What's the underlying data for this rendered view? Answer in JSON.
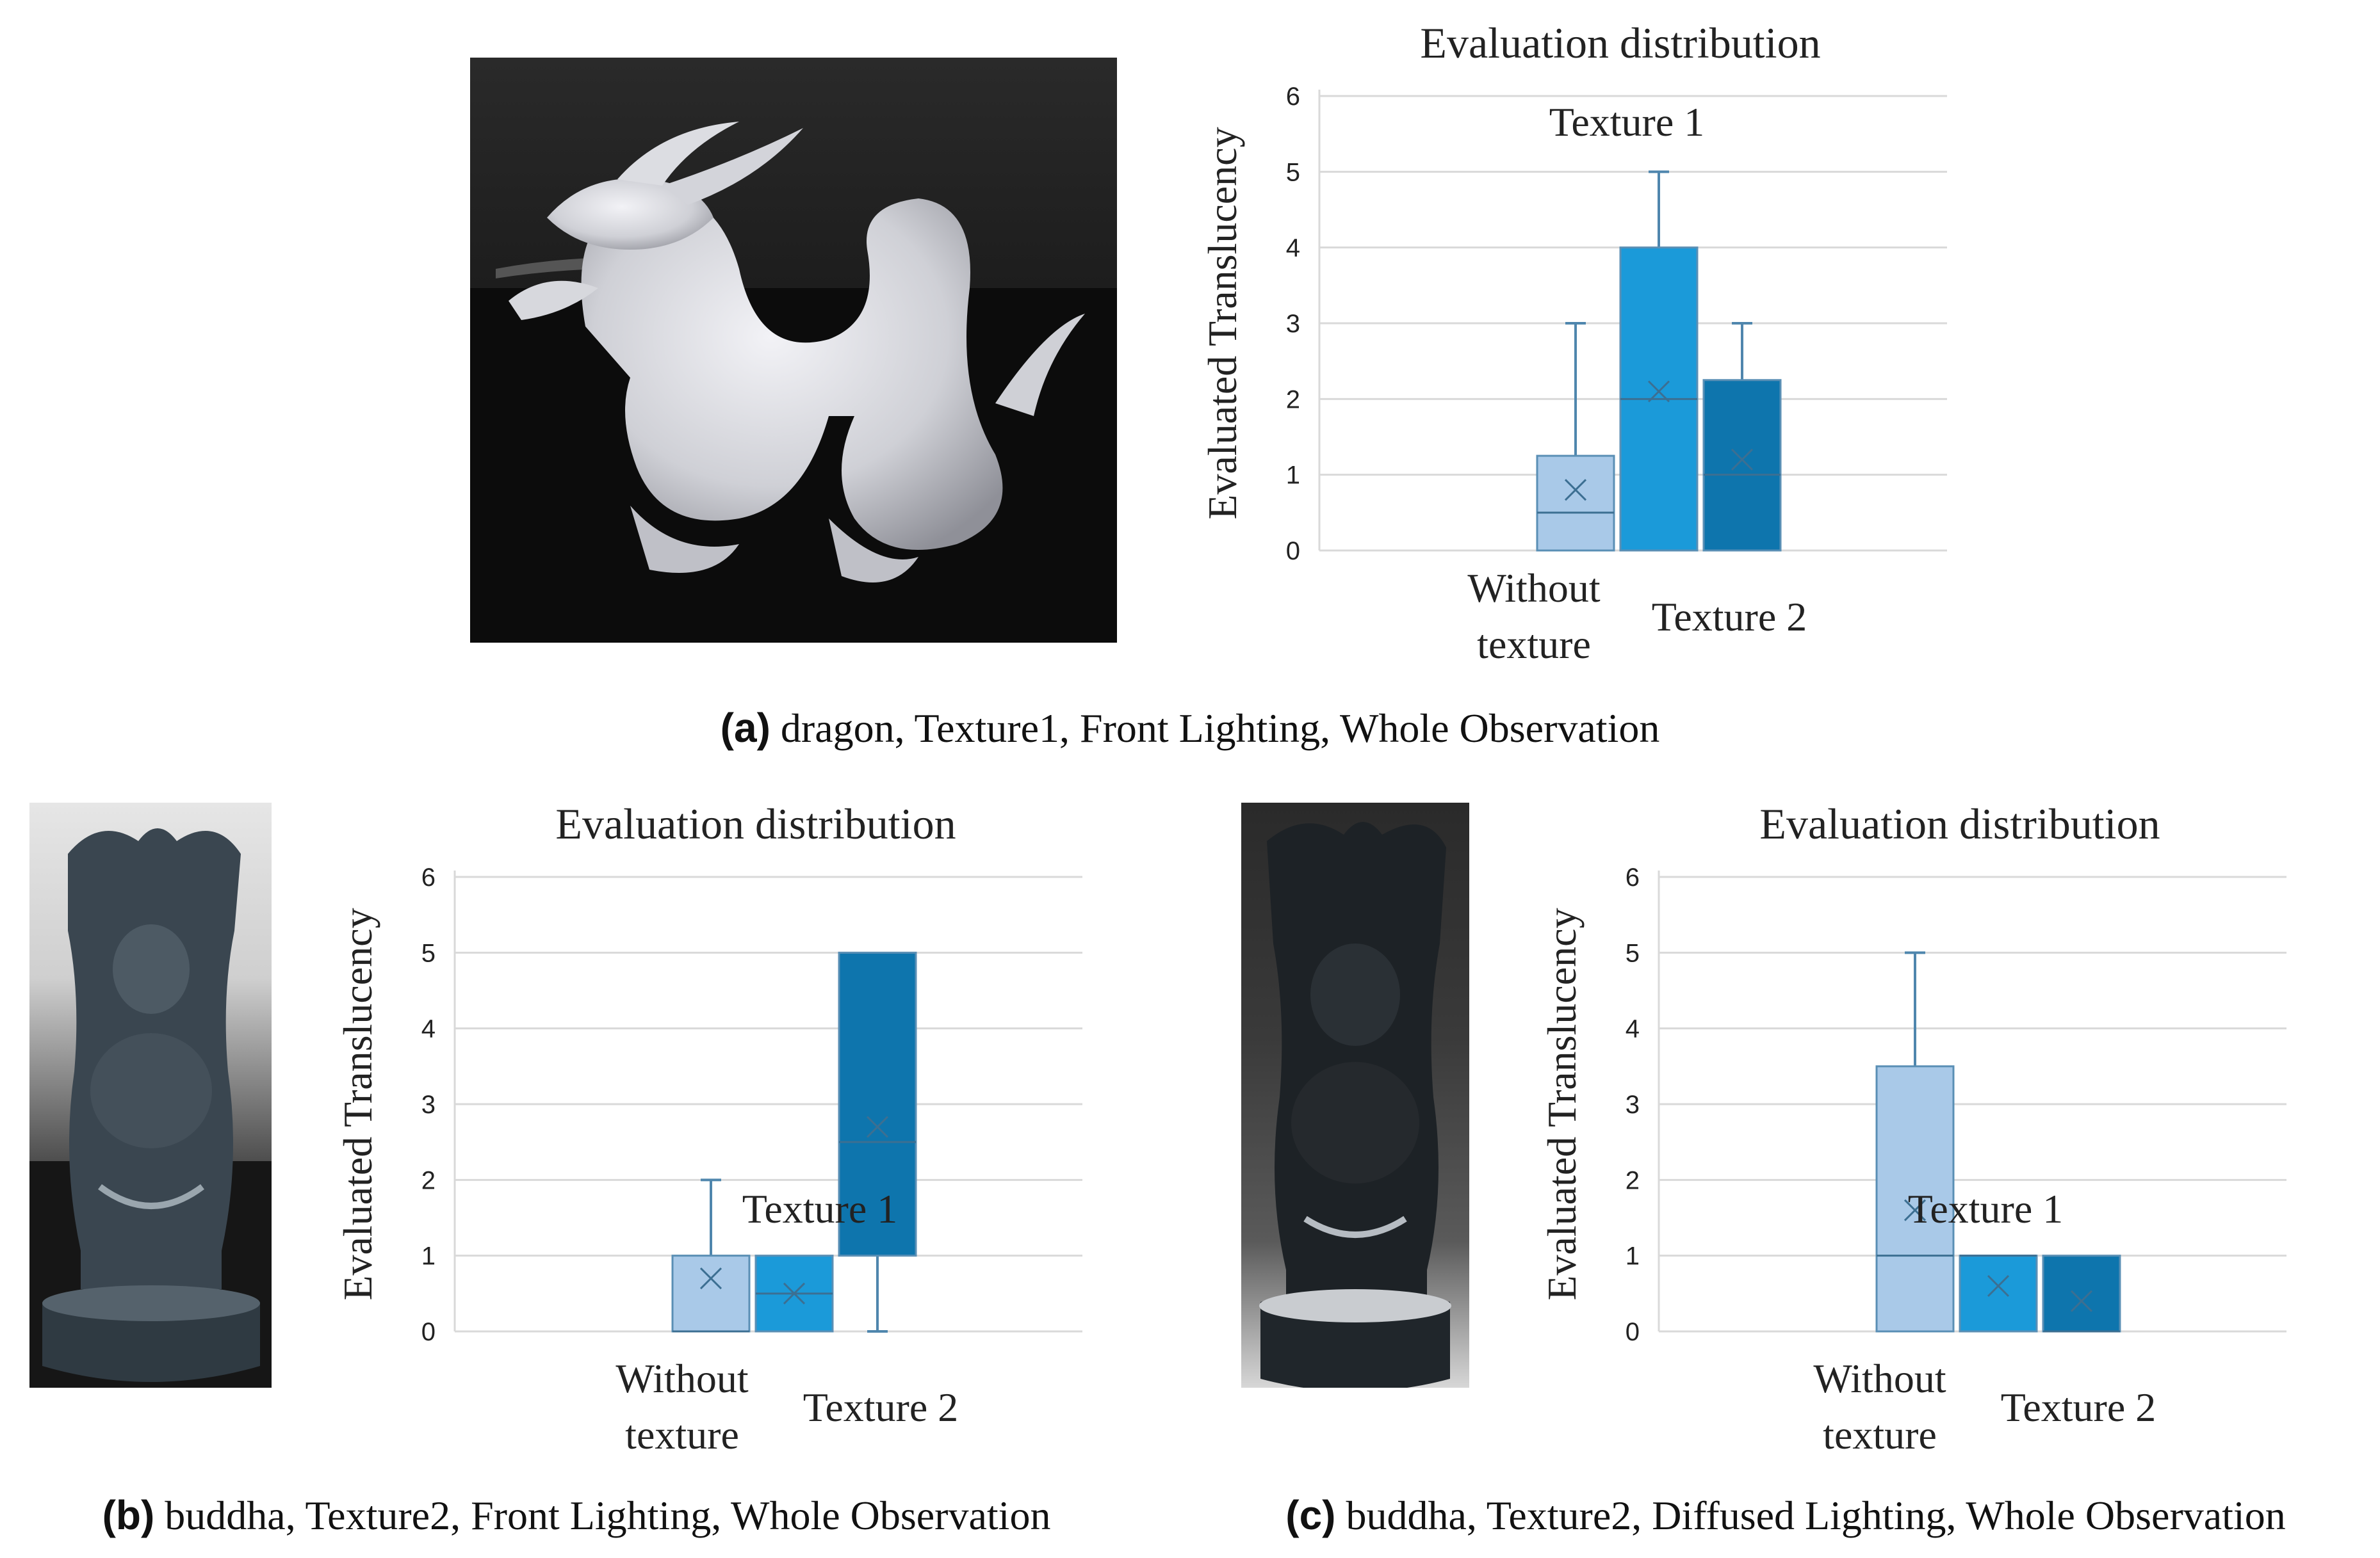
{
  "panels": [
    {
      "caption_letter": "(a)",
      "caption_text": " dragon, Texture1, Front Lighting, Whole Observation",
      "photo_subject": "dragon"
    },
    {
      "caption_letter": "(b)",
      "caption_text": " buddha, Texture2, Front Lighting, Whole Observation",
      "photo_subject": "buddha"
    },
    {
      "caption_letter": "(c)",
      "caption_text": " buddha, Texture2, Diffused Lighting, Whole Observation",
      "photo_subject": "buddha"
    }
  ],
  "colors": {
    "without_texture": "#a9c9e8",
    "texture1": "#1b9ad9",
    "texture2": "#0e75ad",
    "gridline": "#d9d9d9",
    "whisker": "#4f86ad"
  },
  "chart_data": [
    {
      "type": "box",
      "title": "Evaluation distribution",
      "ylabel": "Evaluated Translucency",
      "ylim": [
        0,
        6
      ],
      "yticks": [
        "0",
        "1",
        "2",
        "3",
        "4",
        "5",
        "6"
      ],
      "grid": true,
      "series": [
        {
          "name": "Without texture",
          "min": 0,
          "q1": 0,
          "median": 0.5,
          "q3": 1.25,
          "max": 3,
          "mean": 0.8
        },
        {
          "name": "Texture 1",
          "min": 0,
          "q1": 0,
          "median": 2,
          "q3": 4,
          "max": 5,
          "mean": 2.1
        },
        {
          "name": "Texture 2",
          "min": 0,
          "q1": 0,
          "median": 1,
          "q3": 2.25,
          "max": 3,
          "mean": 1.2
        }
      ]
    },
    {
      "type": "box",
      "title": "Evaluation distribution",
      "ylabel": "Evaluated Translucency",
      "ylim": [
        0,
        6
      ],
      "yticks": [
        "0",
        "1",
        "2",
        "3",
        "4",
        "5",
        "6"
      ],
      "grid": true,
      "series": [
        {
          "name": "Without texture",
          "min": 0,
          "q1": 0,
          "median": 0,
          "q3": 1,
          "max": 2,
          "mean": 0.7
        },
        {
          "name": "Texture 1",
          "min": 0,
          "q1": 0,
          "median": 0.5,
          "q3": 1,
          "max": 1,
          "mean": 0.5
        },
        {
          "name": "Texture 2",
          "min": 0,
          "q1": 1,
          "median": 2.5,
          "q3": 5,
          "max": 5,
          "mean": 2.7
        }
      ]
    },
    {
      "type": "box",
      "title": "Evaluation distribution",
      "ylabel": "Evaluated Translucency",
      "ylim": [
        0,
        6
      ],
      "yticks": [
        "0",
        "1",
        "2",
        "3",
        "4",
        "5",
        "6"
      ],
      "grid": true,
      "series": [
        {
          "name": "Without texture",
          "min": 0,
          "q1": 0,
          "median": 1,
          "q3": 3.5,
          "max": 5,
          "mean": 1.6
        },
        {
          "name": "Texture 1",
          "min": 0,
          "q1": 0,
          "median": 1,
          "q3": 1,
          "max": 1,
          "mean": 0.6
        },
        {
          "name": "Texture 2",
          "min": 0,
          "q1": 0,
          "median": 0,
          "q3": 1,
          "max": 1,
          "mean": 0.4
        }
      ]
    }
  ]
}
